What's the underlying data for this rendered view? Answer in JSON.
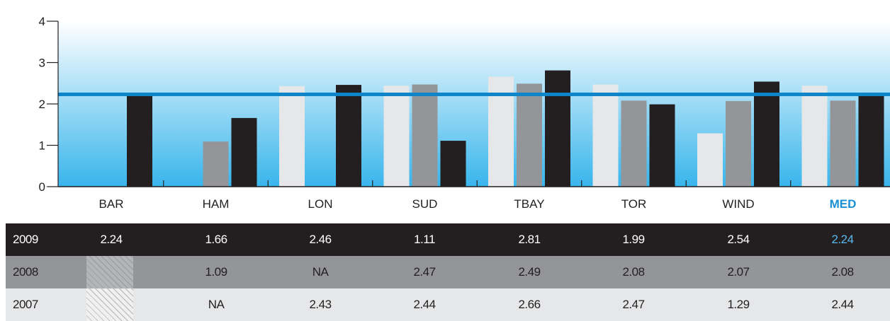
{
  "chart_data": {
    "type": "bar",
    "categories": [
      "BAR",
      "HAM",
      "LON",
      "SUD",
      "TBAY",
      "TOR",
      "WIND",
      "MED"
    ],
    "highlight_category": "MED",
    "ylim": [
      0,
      4
    ],
    "yticks": [
      "0",
      "1",
      "2",
      "3",
      "4"
    ],
    "reference_line": 2.24,
    "grid": false,
    "series": [
      {
        "name": "2007",
        "color": "#e6e7e8",
        "values": [
          null,
          null,
          2.43,
          2.44,
          2.66,
          2.47,
          1.29,
          2.44
        ]
      },
      {
        "name": "2008",
        "color": "#939598",
        "values": [
          null,
          1.09,
          null,
          2.47,
          2.49,
          2.08,
          2.07,
          2.08
        ]
      },
      {
        "name": "2009",
        "color": "#231f20",
        "values": [
          2.24,
          1.66,
          2.46,
          1.11,
          2.81,
          1.99,
          2.54,
          2.24
        ]
      }
    ],
    "colors": {
      "highlight": "#1a8fd6",
      "reference_line": "#0d85c8",
      "gradient_top": "#ffffff",
      "gradient_bottom": "#38b5ec"
    }
  },
  "table": {
    "rows": [
      {
        "year": "2009",
        "cells": [
          "2.24",
          "1.66",
          "2.46",
          "1.11",
          "2.81",
          "1.99",
          "2.54",
          "2.24"
        ]
      },
      {
        "year": "2008",
        "cells": [
          "",
          "1.09",
          "NA",
          "2.47",
          "2.49",
          "2.08",
          "2.07",
          "2.08"
        ]
      },
      {
        "year": "2007",
        "cells": [
          "",
          "NA",
          "2.43",
          "2.44",
          "2.66",
          "2.47",
          "1.29",
          "2.44"
        ]
      }
    ]
  }
}
